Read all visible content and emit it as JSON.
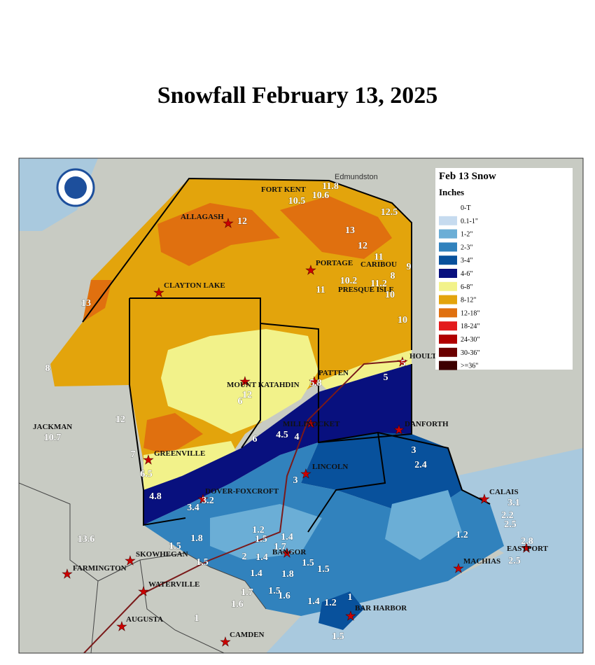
{
  "title": "Snowfall February 13, 2025",
  "legend": {
    "title": "Feb 13 Snow",
    "units": "Inches",
    "items": [
      {
        "label": "0-T",
        "color": "#ffffff"
      },
      {
        "label": "0.1-1\"",
        "color": "#c6dbef"
      },
      {
        "label": "1-2\"",
        "color": "#6baed6"
      },
      {
        "label": "2-3\"",
        "color": "#3182bd"
      },
      {
        "label": "3-4\"",
        "color": "#08519c"
      },
      {
        "label": "4-6\"",
        "color": "#08107e"
      },
      {
        "label": "6-8\"",
        "color": "#f2f28a"
      },
      {
        "label": "8-12\"",
        "color": "#e3a40c"
      },
      {
        "label": "12-18\"",
        "color": "#e0700f"
      },
      {
        "label": "18-24\"",
        "color": "#e31a1c"
      },
      {
        "label": "24-30\"",
        "color": "#b00000"
      },
      {
        "label": "30-36\"",
        "color": "#6b0000"
      },
      {
        "label": ">=36\"",
        "color": "#3d0000"
      }
    ]
  },
  "basemap_labels": [
    "Edmundston"
  ],
  "places": [
    "FORT KENT",
    "ALLAGASH",
    "CLAYTON LAKE",
    "PORTAGE",
    "CARIBOU",
    "PRESQUE ISLE",
    "HOULTON",
    "PATTEN",
    "MOUNT KATAHDIN",
    "MILLINOCKET",
    "DANFORTH",
    "LINCOLN",
    "JACKMAN",
    "GREENVILLE",
    "DOVER-FOXCROFT",
    "CALAIS",
    "EASTPORT",
    "MACHIAS",
    "BAR HARBOR",
    "BANGOR",
    "SKOWHEGAN",
    "FARMINGTON",
    "WATERVILLE",
    "AUGUSTA",
    "CAMDEN"
  ],
  "reports": [
    11.8,
    10.6,
    10.5,
    12.5,
    12,
    13,
    12,
    11,
    8,
    9,
    10.2,
    11.2,
    11,
    10,
    10,
    13,
    8,
    5,
    5,
    5.8,
    12,
    6,
    12,
    10.7,
    4.5,
    4,
    6,
    3,
    2.4,
    7,
    6.5,
    3,
    4.8,
    3.2,
    3.4,
    3.1,
    2.2,
    2.5,
    1.2,
    1.5,
    1.4,
    1.2,
    13.6,
    1.8,
    1.5,
    1.7,
    2.8,
    2,
    1.4,
    1.5,
    2.5,
    1.5,
    1.5,
    1.4,
    1.8,
    1.7,
    1.5,
    1.6,
    1,
    1.6,
    1.4,
    1.2,
    1,
    1.5
  ]
}
